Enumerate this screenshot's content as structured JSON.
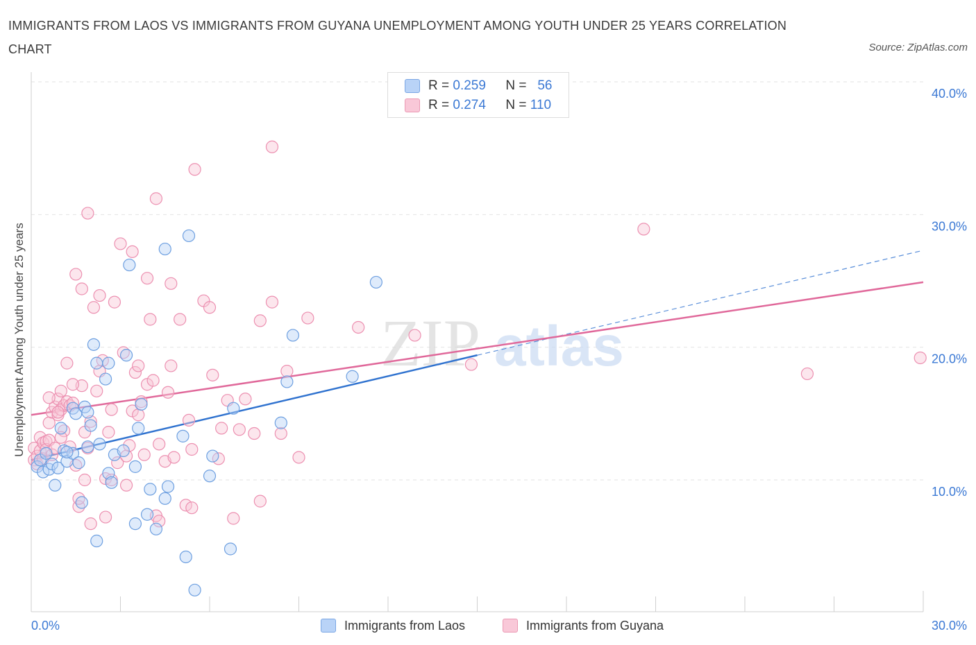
{
  "header": {
    "title": "IMMIGRANTS FROM LAOS VS IMMIGRANTS FROM GUYANA UNEMPLOYMENT AMONG YOUTH UNDER 25 YEARS CORRELATION CHART",
    "source": "Source: ZipAtlas.com"
  },
  "legend": {
    "laos": {
      "r_label": "R =",
      "r_value": "0.259",
      "n_label": "N =",
      "n_value": "56"
    },
    "guyana": {
      "r_label": "R =",
      "r_value": "0.274",
      "n_label": "N =",
      "n_value": "110"
    }
  },
  "watermark": {
    "zip": "ZIP",
    "atlas": "atlas"
  },
  "colors": {
    "laos_fill": "#b9d3f7",
    "laos_stroke": "#6d9fe0",
    "laos_line": "#2f72cf",
    "guyana_fill": "#f9c8d8",
    "guyana_stroke": "#ec8fb0",
    "guyana_line": "#e0689a",
    "tick_label": "#3a78d4",
    "grid": "#e2e2e2"
  },
  "chart_data": {
    "type": "scatter",
    "title": "IMMIGRANTS FROM LAOS VS IMMIGRANTS FROM GUYANA UNEMPLOYMENT AMONG YOUTH UNDER 25 YEARS CORRELATION CHART",
    "xlabel": "",
    "ylabel": "Unemployment Among Youth under 25 years",
    "xlim": [
      0,
      30
    ],
    "ylim": [
      0,
      40
    ],
    "x_tick_labels": [
      "0.0%",
      "30.0%"
    ],
    "y_ticks": [
      10,
      20,
      30,
      40
    ],
    "y_tick_labels": [
      "10.0%",
      "20.0%",
      "30.0%",
      "40.0%"
    ],
    "grid": true,
    "legend_position": "top-center",
    "series": [
      {
        "name": "Immigrants from Laos",
        "R": 0.259,
        "N": 56,
        "trend": {
          "x": [
            0,
            15
          ],
          "y": [
            11.5,
            19.4
          ],
          "extended_to": [
            30,
            27.3
          ],
          "extended_style": "dashed"
        },
        "points": [
          [
            0.2,
            11.0
          ],
          [
            0.3,
            11.5
          ],
          [
            0.5,
            12.0
          ],
          [
            0.4,
            10.6
          ],
          [
            0.6,
            10.8
          ],
          [
            0.7,
            11.2
          ],
          [
            0.8,
            9.6
          ],
          [
            0.9,
            10.9
          ],
          [
            1.0,
            13.9
          ],
          [
            1.1,
            12.2
          ],
          [
            1.2,
            11.4
          ],
          [
            1.4,
            12.0
          ],
          [
            1.4,
            15.4
          ],
          [
            1.5,
            15.0
          ],
          [
            1.6,
            11.3
          ],
          [
            1.7,
            8.3
          ],
          [
            1.8,
            15.5
          ],
          [
            1.9,
            12.5
          ],
          [
            1.9,
            15.1
          ],
          [
            2.0,
            14.1
          ],
          [
            2.1,
            20.2
          ],
          [
            2.2,
            18.8
          ],
          [
            2.3,
            12.7
          ],
          [
            2.5,
            17.6
          ],
          [
            2.6,
            18.8
          ],
          [
            2.6,
            10.5
          ],
          [
            2.7,
            9.8
          ],
          [
            2.8,
            11.9
          ],
          [
            3.1,
            12.2
          ],
          [
            3.2,
            19.4
          ],
          [
            3.3,
            26.2
          ],
          [
            3.5,
            11.0
          ],
          [
            3.6,
            13.9
          ],
          [
            3.7,
            15.7
          ],
          [
            3.9,
            7.4
          ],
          [
            4.0,
            9.3
          ],
          [
            4.2,
            6.3
          ],
          [
            4.5,
            8.6
          ],
          [
            4.6,
            9.5
          ],
          [
            4.5,
            27.4
          ],
          [
            5.1,
            13.3
          ],
          [
            5.2,
            4.2
          ],
          [
            5.3,
            28.4
          ],
          [
            5.5,
            1.7
          ],
          [
            6.1,
            11.8
          ],
          [
            6.0,
            10.3
          ],
          [
            6.7,
            4.8
          ],
          [
            6.8,
            15.4
          ],
          [
            8.6,
            17.4
          ],
          [
            8.4,
            14.3
          ],
          [
            8.8,
            20.9
          ],
          [
            10.8,
            17.8
          ],
          [
            11.6,
            24.9
          ],
          [
            1.2,
            12.1
          ],
          [
            2.2,
            5.4
          ],
          [
            3.5,
            6.7
          ]
        ]
      },
      {
        "name": "Immigrants from Guyana",
        "R": 0.274,
        "N": 110,
        "trend": {
          "x": [
            0,
            30
          ],
          "y": [
            14.9,
            24.9
          ]
        },
        "points": [
          [
            0.1,
            11.5
          ],
          [
            0.1,
            12.4
          ],
          [
            0.2,
            11.8
          ],
          [
            0.2,
            11.2
          ],
          [
            0.3,
            13.2
          ],
          [
            0.3,
            12.2
          ],
          [
            0.4,
            12.8
          ],
          [
            0.4,
            11.6
          ],
          [
            0.5,
            12.9
          ],
          [
            0.5,
            12.3
          ],
          [
            0.6,
            14.3
          ],
          [
            0.6,
            13.0
          ],
          [
            0.7,
            11.9
          ],
          [
            0.7,
            15.1
          ],
          [
            0.8,
            15.5
          ],
          [
            0.8,
            12.4
          ],
          [
            0.9,
            16.1
          ],
          [
            0.9,
            14.9
          ],
          [
            1.0,
            16.7
          ],
          [
            1.0,
            15.3
          ],
          [
            1.1,
            13.7
          ],
          [
            1.1,
            15.6
          ],
          [
            1.2,
            18.8
          ],
          [
            1.2,
            15.9
          ],
          [
            1.3,
            15.6
          ],
          [
            1.3,
            12.5
          ],
          [
            1.4,
            15.8
          ],
          [
            1.5,
            11.1
          ],
          [
            1.5,
            25.5
          ],
          [
            1.6,
            8.0
          ],
          [
            1.6,
            8.6
          ],
          [
            1.7,
            17.1
          ],
          [
            1.7,
            24.4
          ],
          [
            1.8,
            13.6
          ],
          [
            1.8,
            10.0
          ],
          [
            1.9,
            30.1
          ],
          [
            1.9,
            12.4
          ],
          [
            2.0,
            14.4
          ],
          [
            2.0,
            6.7
          ],
          [
            2.1,
            23.0
          ],
          [
            2.2,
            16.7
          ],
          [
            2.3,
            18.2
          ],
          [
            2.3,
            23.9
          ],
          [
            2.4,
            19.0
          ],
          [
            2.5,
            7.2
          ],
          [
            2.5,
            10.1
          ],
          [
            2.6,
            13.6
          ],
          [
            2.7,
            15.3
          ],
          [
            2.8,
            23.4
          ],
          [
            2.9,
            11.3
          ],
          [
            3.0,
            27.8
          ],
          [
            3.1,
            19.6
          ],
          [
            3.2,
            11.8
          ],
          [
            3.2,
            9.6
          ],
          [
            3.3,
            12.6
          ],
          [
            3.4,
            27.2
          ],
          [
            3.4,
            15.2
          ],
          [
            3.5,
            18.1
          ],
          [
            3.6,
            18.6
          ],
          [
            3.7,
            15.9
          ],
          [
            3.8,
            11.9
          ],
          [
            3.9,
            17.2
          ],
          [
            3.9,
            25.2
          ],
          [
            4.0,
            22.1
          ],
          [
            4.1,
            17.5
          ],
          [
            4.2,
            7.3
          ],
          [
            4.2,
            31.2
          ],
          [
            4.3,
            12.7
          ],
          [
            4.5,
            11.4
          ],
          [
            4.6,
            16.6
          ],
          [
            4.7,
            24.8
          ],
          [
            4.8,
            11.7
          ],
          [
            5.0,
            22.1
          ],
          [
            5.2,
            8.1
          ],
          [
            5.3,
            14.5
          ],
          [
            5.4,
            12.3
          ],
          [
            5.5,
            33.4
          ],
          [
            5.8,
            23.5
          ],
          [
            6.0,
            23.0
          ],
          [
            6.1,
            17.9
          ],
          [
            6.4,
            13.9
          ],
          [
            6.6,
            16.0
          ],
          [
            6.8,
            7.1
          ],
          [
            7.0,
            13.8
          ],
          [
            7.2,
            16.1
          ],
          [
            7.5,
            13.5
          ],
          [
            7.7,
            8.4
          ],
          [
            7.7,
            22.0
          ],
          [
            8.1,
            35.1
          ],
          [
            8.1,
            23.4
          ],
          [
            8.4,
            13.5
          ],
          [
            8.6,
            18.2
          ],
          [
            9.0,
            11.7
          ],
          [
            9.3,
            22.2
          ],
          [
            11.0,
            21.5
          ],
          [
            12.9,
            20.9
          ],
          [
            14.8,
            18.7
          ],
          [
            20.6,
            28.9
          ],
          [
            26.1,
            18.0
          ],
          [
            29.9,
            19.2
          ],
          [
            0.9,
            15.1
          ],
          [
            1.4,
            17.2
          ],
          [
            2.7,
            10.0
          ],
          [
            3.6,
            14.9
          ],
          [
            4.3,
            6.9
          ],
          [
            4.7,
            18.6
          ],
          [
            5.4,
            7.9
          ],
          [
            6.3,
            11.6
          ],
          [
            0.6,
            16.2
          ],
          [
            1.0,
            13.2
          ]
        ]
      }
    ]
  },
  "bottom_legend": {
    "laos_label": "Immigrants from Laos",
    "guyana_label": "Immigrants from Guyana"
  }
}
